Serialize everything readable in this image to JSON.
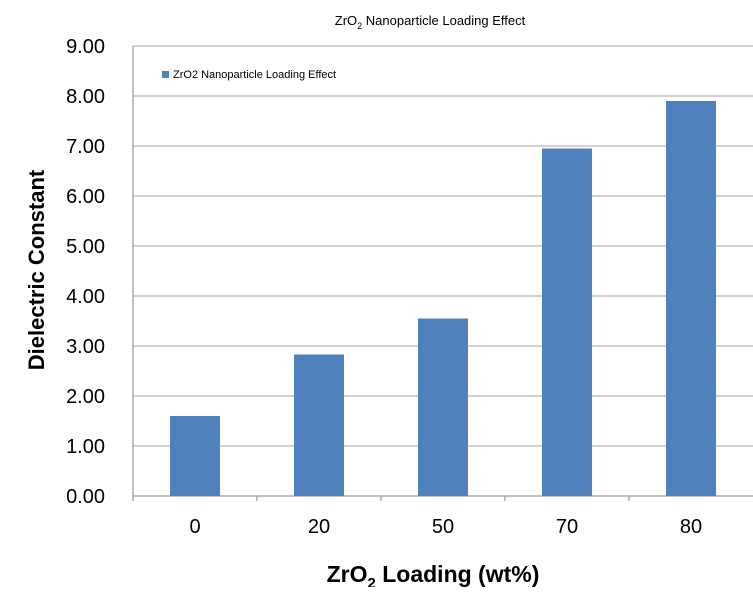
{
  "chart_data": {
    "type": "bar",
    "title": {
      "main": "ZrO",
      "subscript": "2",
      "rest": " Nanoparticle Loading Effect"
    },
    "xlabel": {
      "main": "ZrO",
      "subscript": "2",
      "rest": " Loading (wt%)"
    },
    "ylabel": "Dielectric Constant",
    "categories": [
      "0",
      "20",
      "50",
      "70",
      "80"
    ],
    "series": [
      {
        "name": "ZrO2 Nanoparticle Loading Effect",
        "color": "#4f81bd",
        "values": [
          1.6,
          2.83,
          3.55,
          6.95,
          7.9
        ]
      }
    ],
    "ylim": [
      0,
      9
    ],
    "yticks": [
      "0.00",
      "1.00",
      "2.00",
      "3.00",
      "4.00",
      "5.00",
      "6.00",
      "7.00",
      "8.00",
      "9.00"
    ],
    "grid": true,
    "legend_position": "top-left"
  }
}
